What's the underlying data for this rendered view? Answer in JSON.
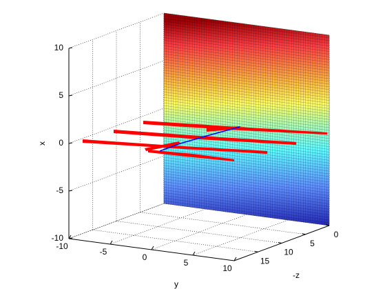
{
  "chart_data": {
    "type": "surface3d",
    "xlabel": "y",
    "ylabel": "-z",
    "zlabel": "x",
    "xlim": [
      -10,
      10
    ],
    "ylim": [
      0,
      20
    ],
    "zlim": [
      -10,
      10
    ],
    "xticks": [
      -10,
      -5,
      0,
      5,
      10
    ],
    "yticks": [
      0,
      5,
      10,
      15
    ],
    "zticks": [
      -10,
      -5,
      0,
      5,
      10
    ],
    "colormap": "jet",
    "grid": true,
    "surface_color": "#ff0000",
    "edge_color": "#0000ff"
  }
}
